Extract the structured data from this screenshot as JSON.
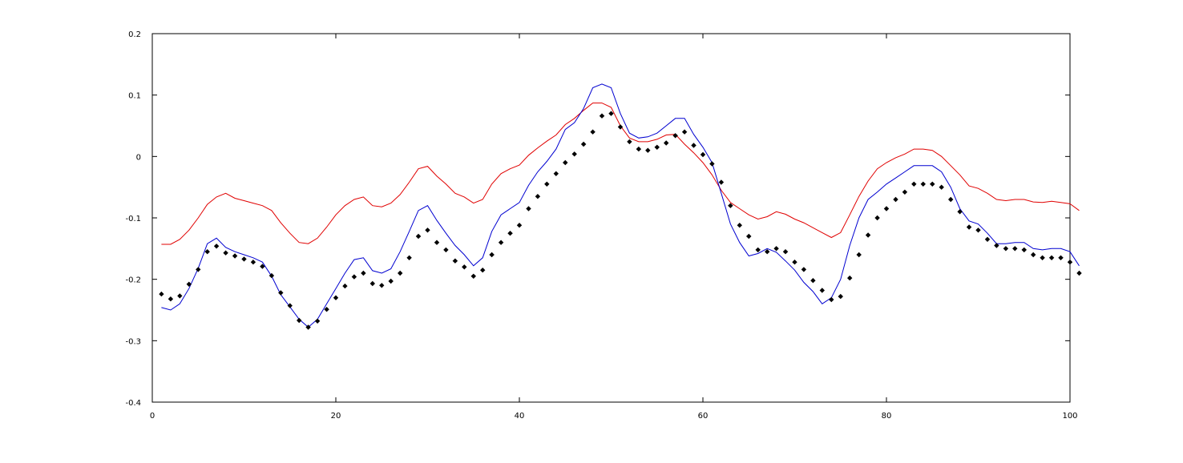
{
  "chart_data": {
    "type": "line",
    "title": "",
    "xlabel": "",
    "ylabel": "",
    "xlim": [
      0,
      100
    ],
    "ylim": [
      -0.4,
      0.2
    ],
    "x_ticks": [
      0,
      20,
      40,
      60,
      80,
      100
    ],
    "x_tick_labels": [
      "0",
      "20",
      "40",
      "60",
      "80",
      "100"
    ],
    "y_ticks": [
      -0.4,
      -0.3,
      -0.2,
      -0.1,
      0,
      0.1,
      0.2
    ],
    "y_tick_labels": [
      "-0.4",
      "-0.3",
      "-0.2",
      "-0.1",
      "0",
      "0.1",
      "0.2"
    ],
    "grid": false,
    "legend": "none",
    "x_start": 1,
    "series": [
      {
        "style": "line",
        "color": "#e00000",
        "values": [
          -0.143,
          -0.143,
          -0.135,
          -0.12,
          -0.1,
          -0.078,
          -0.066,
          -0.06,
          -0.068,
          -0.072,
          -0.076,
          -0.08,
          -0.088,
          -0.108,
          -0.125,
          -0.14,
          -0.142,
          -0.133,
          -0.115,
          -0.095,
          -0.08,
          -0.07,
          -0.066,
          -0.08,
          -0.082,
          -0.076,
          -0.062,
          -0.042,
          -0.02,
          -0.016,
          -0.032,
          -0.045,
          -0.06,
          -0.066,
          -0.076,
          -0.07,
          -0.045,
          -0.028,
          -0.02,
          -0.014,
          0.002,
          0.014,
          0.025,
          0.035,
          0.052,
          0.062,
          0.075,
          0.087,
          0.087,
          0.08,
          0.05,
          0.03,
          0.024,
          0.024,
          0.028,
          0.035,
          0.036,
          0.02,
          0.006,
          -0.01,
          -0.03,
          -0.055,
          -0.075,
          -0.085,
          -0.095,
          -0.102,
          -0.098,
          -0.09,
          -0.094,
          -0.102,
          -0.108,
          -0.116,
          -0.124,
          -0.132,
          -0.124,
          -0.095,
          -0.065,
          -0.04,
          -0.02,
          -0.01,
          -0.002,
          0.004,
          0.012,
          0.012,
          0.01,
          0.0,
          -0.015,
          -0.03,
          -0.048,
          -0.052,
          -0.06,
          -0.07,
          -0.072,
          -0.07,
          -0.07,
          -0.074,
          -0.075,
          -0.073,
          -0.075,
          -0.077,
          -0.088
        ]
      },
      {
        "style": "line",
        "color": "#0000d0",
        "values": [
          -0.246,
          -0.25,
          -0.24,
          -0.215,
          -0.182,
          -0.142,
          -0.133,
          -0.148,
          -0.155,
          -0.16,
          -0.165,
          -0.172,
          -0.195,
          -0.225,
          -0.245,
          -0.265,
          -0.278,
          -0.265,
          -0.24,
          -0.215,
          -0.19,
          -0.168,
          -0.165,
          -0.186,
          -0.19,
          -0.183,
          -0.155,
          -0.122,
          -0.088,
          -0.08,
          -0.104,
          -0.125,
          -0.145,
          -0.16,
          -0.178,
          -0.165,
          -0.122,
          -0.095,
          -0.085,
          -0.075,
          -0.047,
          -0.025,
          -0.008,
          0.012,
          0.044,
          0.055,
          0.078,
          0.112,
          0.118,
          0.112,
          0.07,
          0.038,
          0.03,
          0.032,
          0.038,
          0.05,
          0.062,
          0.062,
          0.036,
          0.015,
          -0.01,
          -0.06,
          -0.11,
          -0.14,
          -0.162,
          -0.158,
          -0.15,
          -0.156,
          -0.17,
          -0.185,
          -0.205,
          -0.22,
          -0.24,
          -0.23,
          -0.2,
          -0.145,
          -0.1,
          -0.07,
          -0.058,
          -0.045,
          -0.035,
          -0.025,
          -0.015,
          -0.015,
          -0.015,
          -0.025,
          -0.05,
          -0.085,
          -0.105,
          -0.11,
          -0.125,
          -0.142,
          -0.142,
          -0.14,
          -0.14,
          -0.15,
          -0.152,
          -0.15,
          -0.15,
          -0.155,
          -0.178
        ]
      },
      {
        "style": "markers",
        "color": "#000000",
        "values": [
          -0.224,
          -0.232,
          -0.227,
          -0.208,
          -0.184,
          -0.155,
          -0.146,
          -0.157,
          -0.162,
          -0.167,
          -0.172,
          -0.179,
          -0.194,
          -0.222,
          -0.243,
          -0.267,
          -0.278,
          -0.268,
          -0.249,
          -0.23,
          -0.211,
          -0.196,
          -0.19,
          -0.207,
          -0.21,
          -0.203,
          -0.19,
          -0.165,
          -0.13,
          -0.12,
          -0.14,
          -0.152,
          -0.17,
          -0.18,
          -0.195,
          -0.185,
          -0.16,
          -0.14,
          -0.125,
          -0.112,
          -0.085,
          -0.065,
          -0.045,
          -0.028,
          -0.01,
          0.004,
          0.02,
          0.04,
          0.066,
          0.07,
          0.048,
          0.024,
          0.012,
          0.01,
          0.015,
          0.022,
          0.034,
          0.04,
          0.018,
          0.003,
          -0.012,
          -0.042,
          -0.08,
          -0.112,
          -0.13,
          -0.152,
          -0.155,
          -0.15,
          -0.155,
          -0.172,
          -0.184,
          -0.202,
          -0.218,
          -0.233,
          -0.228,
          -0.198,
          -0.16,
          -0.128,
          -0.1,
          -0.085,
          -0.07,
          -0.058,
          -0.045,
          -0.045,
          -0.045,
          -0.05,
          -0.07,
          -0.09,
          -0.115,
          -0.12,
          -0.135,
          -0.145,
          -0.15,
          -0.15,
          -0.152,
          -0.16,
          -0.165,
          -0.165,
          -0.165,
          -0.172,
          -0.19
        ]
      }
    ]
  }
}
